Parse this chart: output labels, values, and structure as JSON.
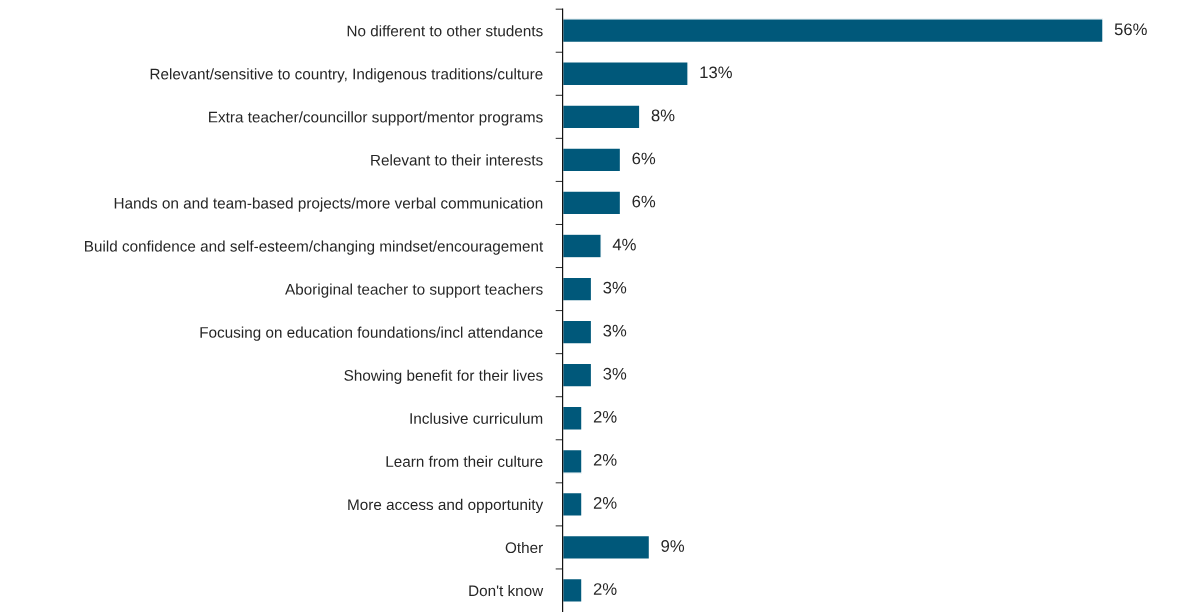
{
  "chart_data": {
    "type": "bar",
    "orientation": "horizontal",
    "categories": [
      "No different to other students",
      "Relevant/sensitive to country, Indigenous traditions/culture",
      "Extra teacher/councillor support/mentor programs",
      "Relevant to their interests",
      "Hands on and team-based projects/more verbal communication",
      "Build confidence and self-esteem/changing mindset/encouragement",
      "Aboriginal teacher to support teachers",
      "Focusing on education foundations/incl attendance",
      "Showing benefit for their lives",
      "Inclusive curriculum",
      "Learn from their culture",
      "More access and opportunity",
      "Other",
      "Don't know"
    ],
    "values": [
      56,
      13,
      8,
      6,
      6,
      4,
      3,
      3,
      3,
      2,
      2,
      2,
      9,
      2
    ],
    "value_labels": [
      "56%",
      "13%",
      "8%",
      "6%",
      "6%",
      "4%",
      "3%",
      "3%",
      "3%",
      "2%",
      "2%",
      "2%",
      "9%",
      "2%"
    ],
    "color": "#00587a",
    "tick_labels": "y",
    "grid": false,
    "legend": false
  }
}
